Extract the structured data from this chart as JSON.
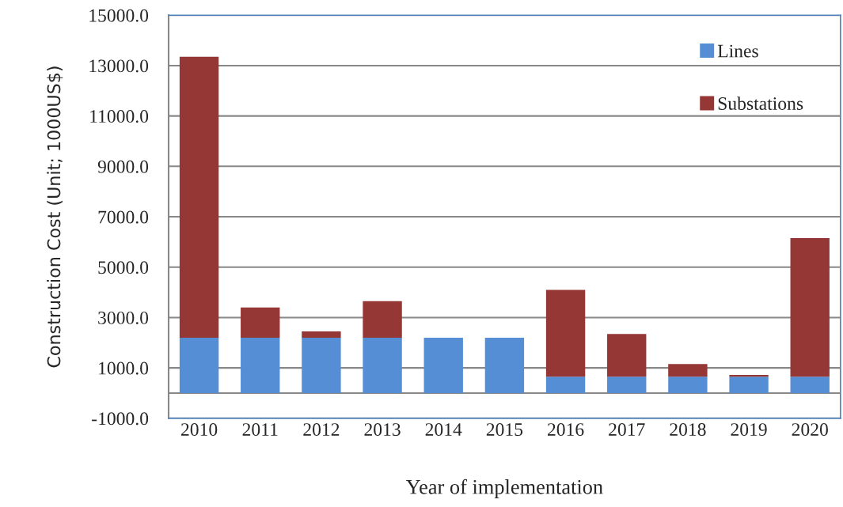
{
  "chart_data": {
    "type": "bar",
    "stacked": true,
    "categories": [
      "2010",
      "2011",
      "2012",
      "2013",
      "2014",
      "2015",
      "2016",
      "2017",
      "2018",
      "2019",
      "2020"
    ],
    "series": [
      {
        "name": "Lines",
        "color": "#558ed5",
        "values": [
          2200,
          2200,
          2200,
          2200,
          2200,
          2200,
          650,
          650,
          650,
          650,
          650
        ]
      },
      {
        "name": "Substations",
        "color": "#953735",
        "values": [
          11150,
          1200,
          250,
          1450,
          null,
          null,
          3450,
          1700,
          500,
          70,
          5500
        ]
      }
    ],
    "ylim": [
      -1000,
      15000
    ],
    "yticks": [
      {
        "value": -1000,
        "label": "-1000.0"
      },
      {
        "value": 1000,
        "label": "1000.0"
      },
      {
        "value": 3000,
        "label": "3000.0"
      },
      {
        "value": 5000,
        "label": "5000.0"
      },
      {
        "value": 7000,
        "label": "7000.0"
      },
      {
        "value": 9000,
        "label": "9000.0"
      },
      {
        "value": 11000,
        "label": "11000.0"
      },
      {
        "value": 13000,
        "label": "13000.0"
      },
      {
        "value": 15000,
        "label": "15000.0"
      }
    ],
    "xlabel": "Year of implementation",
    "ylabel": "Construction Cost (Unit; 1000US$)",
    "grid": "y",
    "legend": "top right"
  }
}
